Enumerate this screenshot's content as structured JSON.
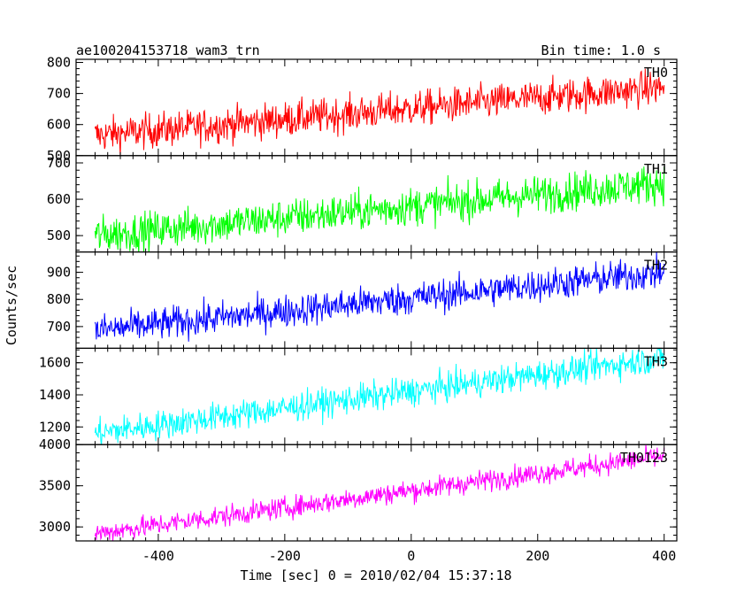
{
  "header": {
    "title": "ae100204153718_wam3_trn",
    "bin_time": "Bin time: 1.0 s"
  },
  "chart_data": {
    "type": "line",
    "title": "ae100204153718_wam3_trn",
    "subtitle": "Bin time: 1.0 s",
    "xlabel": "Time [sec] 0 = 2010/02/04 15:37:18",
    "ylabel": "Counts/sec",
    "xlim": [
      -530,
      420
    ],
    "xticks": [
      -400,
      -200,
      0,
      200,
      400
    ],
    "x_start": -500,
    "x_end": 400,
    "bin": 1.0,
    "grid": false,
    "legend": "none",
    "panels": [
      {
        "name": "TH0",
        "color": "#ff0000",
        "ylim": [
          500,
          810
        ],
        "yticks": [
          500,
          600,
          700,
          800
        ],
        "start": 565,
        "end": 720,
        "noise": 28
      },
      {
        "name": "TH1",
        "color": "#00ff00",
        "ylim": [
          455,
          720
        ],
        "yticks": [
          500,
          600,
          700
        ],
        "start": 500,
        "end": 645,
        "noise": 26
      },
      {
        "name": "TH2",
        "color": "#0000ff",
        "ylim": [
          620,
          975
        ],
        "yticks": [
          700,
          800,
          900
        ],
        "start": 685,
        "end": 900,
        "noise": 30
      },
      {
        "name": "TH3",
        "color": "#00ffff",
        "ylim": [
          1090,
          1690
        ],
        "yticks": [
          1200,
          1400,
          1600
        ],
        "start": 1160,
        "end": 1630,
        "noise": 45
      },
      {
        "name": "TH0123",
        "color": "#ff00ff",
        "ylim": [
          2830,
          4000
        ],
        "yticks": [
          3000,
          3500,
          4000
        ],
        "start": 2920,
        "end": 3860,
        "noise": 65
      }
    ]
  }
}
